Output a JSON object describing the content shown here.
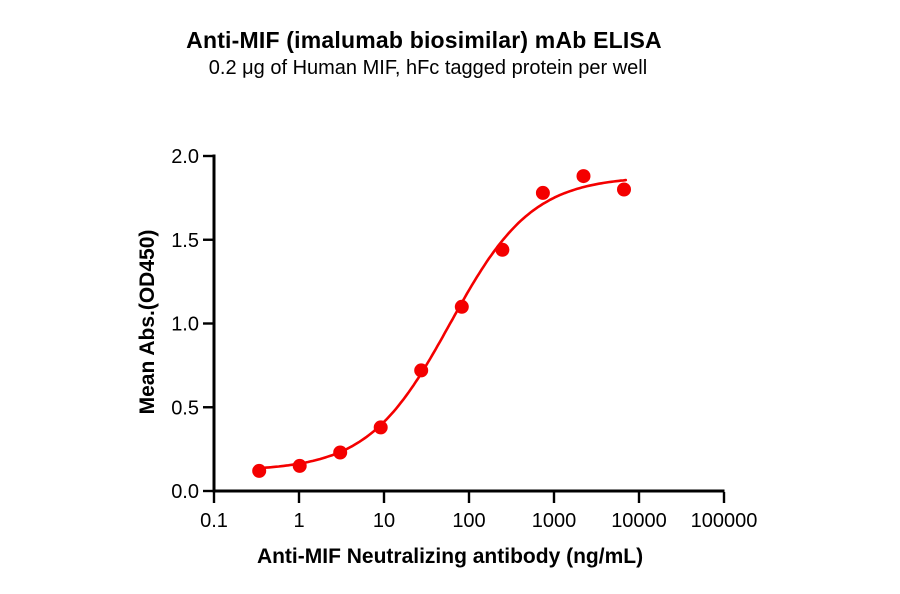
{
  "chart_data": {
    "type": "scatter",
    "title": "Anti-MIF (imalumab biosimilar) mAb ELISA",
    "subtitle": "0.2 μg of Human MIF, hFc tagged protein per well",
    "xlabel": "Anti-MIF Neutralizing antibody (ng/mL)",
    "ylabel": "Mean Abs.(OD450)",
    "x_scale": "log10",
    "xlim": [
      0.1,
      100000
    ],
    "ylim": [
      0.0,
      2.0
    ],
    "grid": false,
    "legend": "none",
    "marker_color": "#f40000",
    "curve_color": "#f40000",
    "axis_color": "#000000",
    "xticks": [
      {
        "value": 0.1,
        "label": "0.1"
      },
      {
        "value": 1,
        "label": "1"
      },
      {
        "value": 10,
        "label": "10"
      },
      {
        "value": 100,
        "label": "100"
      },
      {
        "value": 1000,
        "label": "1000"
      },
      {
        "value": 10000,
        "label": "10000"
      },
      {
        "value": 100000,
        "label": "100000"
      }
    ],
    "yticks": [
      {
        "value": 0.0,
        "label": "0.0"
      },
      {
        "value": 0.5,
        "label": "0.5"
      },
      {
        "value": 1.0,
        "label": "1.0"
      },
      {
        "value": 1.5,
        "label": "1.5"
      },
      {
        "value": 2.0,
        "label": "2.0"
      }
    ],
    "series": [
      {
        "x_ng_ml": [
          0.34,
          1.02,
          3.05,
          9.14,
          27.4,
          82.3,
          247,
          741,
          2222,
          6667
        ],
        "y_od450": [
          0.12,
          0.15,
          0.23,
          0.38,
          0.72,
          1.1,
          1.44,
          1.78,
          1.88,
          1.8
        ]
      }
    ],
    "fit_curve": {
      "model": "4PL-sigmoid",
      "bottom": 0.12,
      "top": 1.88,
      "ec50": 60,
      "hill": 0.9,
      "x_start": 0.34,
      "x_end": 7000
    }
  }
}
